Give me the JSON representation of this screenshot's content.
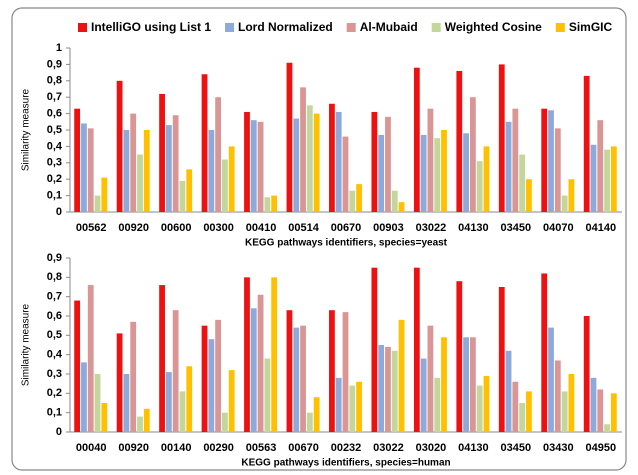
{
  "chart_data": [
    {
      "type": "bar",
      "xlabel": "KEGG pathways identifiers, species=yeast",
      "ylabel": "Similarity measure",
      "categories": [
        "00562",
        "00920",
        "00600",
        "00300",
        "00410",
        "00514",
        "00670",
        "00903",
        "03022",
        "04130",
        "03450",
        "04070",
        "04140"
      ],
      "series": [
        {
          "name": "IntelliGO using List 1",
          "color": "#ee1111",
          "values": [
            0.63,
            0.8,
            0.72,
            0.84,
            0.61,
            0.91,
            0.66,
            0.61,
            0.88,
            0.86,
            0.9,
            0.63,
            0.83
          ]
        },
        {
          "name": "Lord Normalized",
          "color": "#8eaadb",
          "values": [
            0.54,
            0.5,
            0.53,
            0.5,
            0.56,
            0.57,
            0.61,
            0.47,
            0.47,
            0.48,
            0.55,
            0.62,
            0.41
          ]
        },
        {
          "name": "Al-Mubaid",
          "color": "#d99694",
          "values": [
            0.51,
            0.6,
            0.59,
            0.7,
            0.55,
            0.76,
            0.46,
            0.58,
            0.63,
            0.7,
            0.63,
            0.51,
            0.56
          ]
        },
        {
          "name": "Weighted Cosine",
          "color": "#c3d69b",
          "values": [
            0.1,
            0.35,
            0.19,
            0.32,
            0.09,
            0.65,
            0.13,
            0.13,
            0.45,
            0.31,
            0.35,
            0.1,
            0.38
          ]
        },
        {
          "name": "SimGIC",
          "color": "#ffc000",
          "values": [
            0.21,
            0.5,
            0.26,
            0.4,
            0.1,
            0.6,
            0.17,
            0.06,
            0.5,
            0.4,
            0.2,
            0.2,
            0.4
          ]
        }
      ],
      "ylim": [
        0,
        1
      ],
      "yticks": [
        0,
        {
          "value": 0.1,
          "label": "0,1"
        },
        {
          "value": 0.2,
          "label": "0,2"
        },
        {
          "value": 0.3,
          "label": "0,3"
        },
        {
          "value": 0.4,
          "label": "0,4"
        },
        {
          "value": 0.5,
          "label": "0,5"
        },
        {
          "value": 0.6,
          "label": "0,6"
        },
        {
          "value": 0.7,
          "label": "0,7"
        },
        {
          "value": 0.8,
          "label": "0,8"
        },
        {
          "value": 0.9,
          "label": "0,9"
        },
        1
      ],
      "grid": false,
      "legend": "top"
    },
    {
      "type": "bar",
      "xlabel": "KEGG pathways identifiers, species=human",
      "ylabel": "Similarity measure",
      "categories": [
        "00040",
        "00920",
        "00140",
        "00290",
        "00563",
        "00670",
        "00232",
        "03022",
        "03020",
        "04130",
        "03450",
        "03430",
        "04950"
      ],
      "series": [
        {
          "color": "#ee1111",
          "values": [
            0.68,
            0.51,
            0.76,
            0.55,
            0.8,
            0.63,
            0.63,
            0.85,
            0.85,
            0.78,
            0.75,
            0.82,
            0.6
          ]
        },
        {
          "color": "#8eaadb",
          "values": [
            0.36,
            0.3,
            0.31,
            0.48,
            0.64,
            0.54,
            0.28,
            0.45,
            0.38,
            0.49,
            0.42,
            0.54,
            0.28
          ]
        },
        {
          "color": "#d99694",
          "values": [
            0.76,
            0.57,
            0.63,
            0.58,
            0.71,
            0.55,
            0.62,
            0.44,
            0.55,
            0.49,
            0.26,
            0.37,
            0.22
          ]
        },
        {
          "color": "#c3d69b",
          "values": [
            0.3,
            0.08,
            0.21,
            0.1,
            0.38,
            0.1,
            0.24,
            0.42,
            0.28,
            0.24,
            0.15,
            0.21,
            0.04
          ]
        },
        {
          "color": "#ffc000",
          "values": [
            0.15,
            0.12,
            0.34,
            0.32,
            0.8,
            0.18,
            0.26,
            0.58,
            0.49,
            0.29,
            0.21,
            0.3,
            0.2
          ]
        }
      ],
      "ylim": [
        0,
        0.9
      ],
      "yticks": [
        0,
        {
          "value": 0.1,
          "label": "0,1"
        },
        {
          "value": 0.2,
          "label": "0,2"
        },
        {
          "value": 0.3,
          "label": "0,3"
        },
        {
          "value": 0.4,
          "label": "0,4"
        },
        {
          "value": 0.5,
          "label": "0,5"
        },
        {
          "value": 0.6,
          "label": "0,6"
        },
        {
          "value": 0.7,
          "label": "0,7"
        },
        {
          "value": 0.8,
          "label": "0,8"
        },
        {
          "value": 0.9,
          "label": "0,9"
        }
      ],
      "grid": false
    }
  ]
}
